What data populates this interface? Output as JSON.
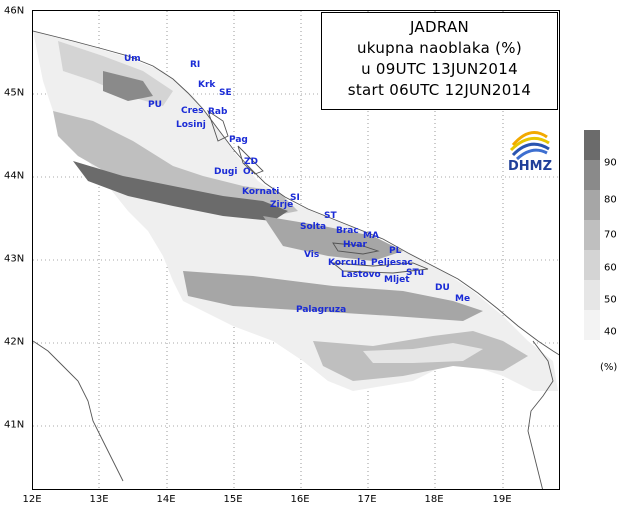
{
  "title": {
    "line1": "JADRAN",
    "line2": "ukupna naoblaka (%)",
    "line3": "u 09UTC 13JUN2014",
    "line4": "start 06UTC 12JUN2014"
  },
  "logo": {
    "text": "DHMZ",
    "icon": "dhmz-sun-logo"
  },
  "lat_labels": [
    "46N",
    "45N",
    "44N",
    "43N",
    "42N",
    "41N"
  ],
  "lon_labels": [
    "12E",
    "13E",
    "14E",
    "15E",
    "16E",
    "17E",
    "18E",
    "19E"
  ],
  "places": [
    {
      "name": "Um"
    },
    {
      "name": "RI"
    },
    {
      "name": "Krk"
    },
    {
      "name": "SE"
    },
    {
      "name": "PU"
    },
    {
      "name": "Cres"
    },
    {
      "name": "Rab"
    },
    {
      "name": "Losinj"
    },
    {
      "name": "Pag"
    },
    {
      "name": "ZD"
    },
    {
      "name": "Dugi"
    },
    {
      "name": "O."
    },
    {
      "name": "Kornati"
    },
    {
      "name": "SI"
    },
    {
      "name": "Zirje"
    },
    {
      "name": "ST"
    },
    {
      "name": "Solta"
    },
    {
      "name": "Brac"
    },
    {
      "name": "MA"
    },
    {
      "name": "Hvar"
    },
    {
      "name": "PL"
    },
    {
      "name": "Vis"
    },
    {
      "name": "Korcula"
    },
    {
      "name": "Peljesac"
    },
    {
      "name": "Lastovo"
    },
    {
      "name": "STu"
    },
    {
      "name": "Mljet"
    },
    {
      "name": "DU"
    },
    {
      "name": "Me"
    },
    {
      "name": "Palagruza"
    }
  ],
  "colorbar": {
    "labels": [
      "90",
      "80",
      "70",
      "60",
      "50",
      "40"
    ],
    "unit": "(%)",
    "colors": [
      "#6b6b6b",
      "#8a8a8a",
      "#a6a6a6",
      "#bfbfbf",
      "#d4d4d4",
      "#e6e6e6",
      "#f3f3f3"
    ]
  }
}
